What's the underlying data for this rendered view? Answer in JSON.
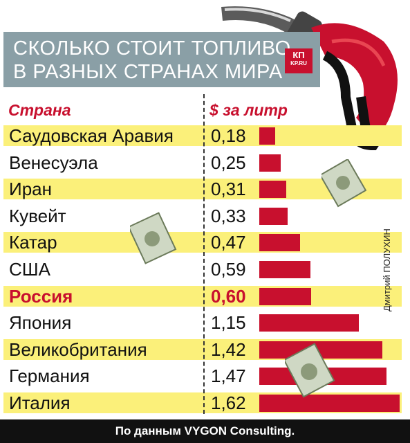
{
  "title": {
    "line1": "СКОЛЬКО СТОИТ ТОПЛИВО",
    "line2": "В РАЗНЫХ СТРАНАХ МИРА"
  },
  "logo": {
    "main": "КП",
    "sub": "KP.RU"
  },
  "column_headers": {
    "country": "Страна",
    "price": "$ за литр"
  },
  "credit": "Дмитрий ПОЛУХИН",
  "footer": "По данным VYGON Consulting.",
  "colors": {
    "bar": "#c8102e",
    "band": "#fbf07a",
    "title_bg": "#8a9fa6",
    "highlight": "#c8102e"
  },
  "chart_data": {
    "type": "bar",
    "orientation": "horizontal",
    "categories": [
      "Саудовская Аравия",
      "Венесуэла",
      "Иран",
      "Кувейт",
      "Катар",
      "США",
      "Россия",
      "Япония",
      "Великобритания",
      "Германия",
      "Италия"
    ],
    "value_labels": [
      "0,18",
      "0,25",
      "0,31",
      "0,33",
      "0,47",
      "0,59",
      "0,60",
      "1,15",
      "1,42",
      "1,47",
      "1,62"
    ],
    "values": [
      0.18,
      0.25,
      0.31,
      0.33,
      0.47,
      0.59,
      0.6,
      1.15,
      1.42,
      1.47,
      1.62
    ],
    "highlighted": "Россия"
  }
}
